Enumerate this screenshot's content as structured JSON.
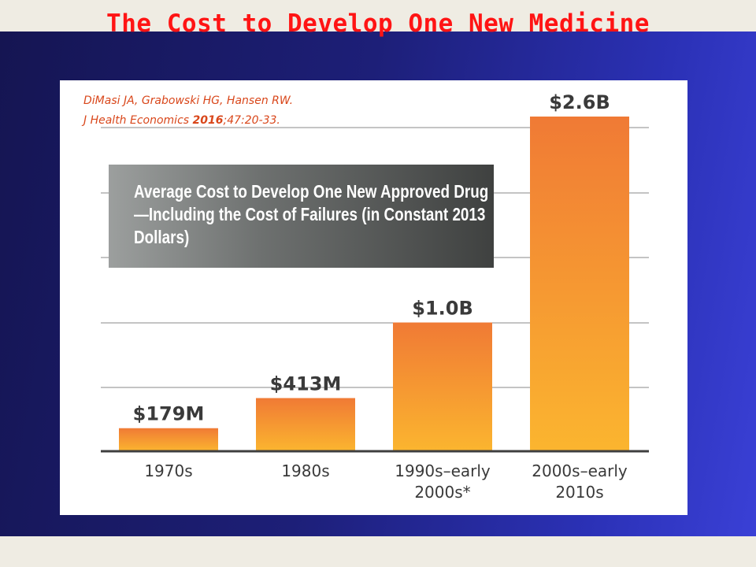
{
  "slide": {
    "title": "The Cost to Develop One New Medicine"
  },
  "citation": {
    "line1": "DiMasi JA, Grabowski HG, Hansen RW.",
    "line2_journal": "J Health Economics ",
    "line2_year": "2016",
    "line2_rest": ";47:20-33."
  },
  "callout": {
    "text": "Average Cost to Develop One New Approved Drug—Including the Cost of Failures (in Constant 2013 Dollars)"
  },
  "colors": {
    "title": "#ff1414",
    "bar_top": "#f07a35",
    "bar_bottom": "#fbb52f",
    "label": "#3a3a3a"
  },
  "chart_data": {
    "type": "bar",
    "title": "Average Cost to Develop One New Approved Drug—Including the Cost of Failures (in Constant 2013 Dollars)",
    "categories": [
      [
        "1970s"
      ],
      [
        "1980s"
      ],
      [
        "1990s–early",
        "2000s*"
      ],
      [
        "2000s–early",
        "2010s"
      ]
    ],
    "values": [
      179,
      413,
      1000,
      2600
    ],
    "value_labels": [
      "$179M",
      "$413M",
      "$1.0B",
      "$2.6B"
    ],
    "unit": "millions of constant 2013 dollars",
    "ylim": [
      0,
      2600
    ],
    "grid": true
  }
}
